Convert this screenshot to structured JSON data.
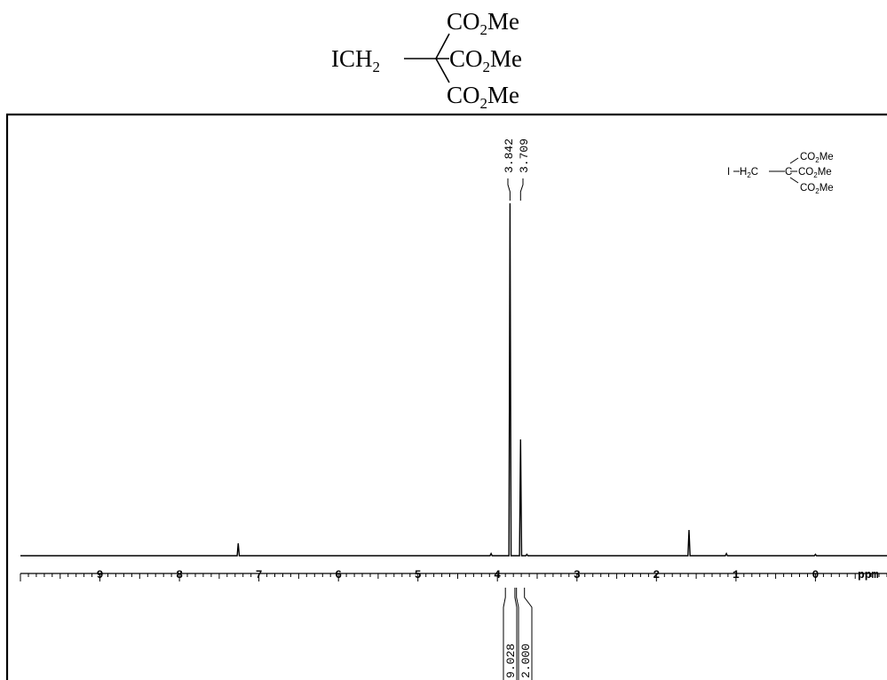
{
  "structure": {
    "substituent": "ICH",
    "substituent_sub": "2",
    "ester": "CO",
    "ester_sub": "2",
    "ester_tail": "Me"
  },
  "inset_structure": {
    "iodide": "I",
    "methylene": "H",
    "methylene_sub": "2",
    "methylene_tail": "C",
    "carbon": "C",
    "ester": "CO",
    "ester_sub": "2",
    "ester_tail": "Me"
  },
  "chart_data": {
    "type": "line",
    "xlabel": "ppm",
    "xlim": [
      10.0,
      -0.9
    ],
    "x_reversed": true,
    "tick_labels": [
      "9",
      "8",
      "7",
      "6",
      "5",
      "4",
      "3",
      "2",
      "1",
      "0"
    ],
    "tick_values": [
      9,
      8,
      7,
      6,
      5,
      4,
      3,
      2,
      1,
      0
    ],
    "minor_tick_step": 0.1,
    "peaks": [
      {
        "ppm": 7.26,
        "intensity": 0.035
      },
      {
        "ppm": 4.08,
        "intensity": 0.006
      },
      {
        "ppm": 3.842,
        "intensity": 1.0
      },
      {
        "ppm": 3.709,
        "intensity": 0.33
      },
      {
        "ppm": 3.63,
        "intensity": 0.004
      },
      {
        "ppm": 1.59,
        "intensity": 0.073
      },
      {
        "ppm": 1.12,
        "intensity": 0.006
      },
      {
        "ppm": 0.0,
        "intensity": 0.004
      }
    ],
    "peak_labels": [
      "3.842",
      "3.709"
    ],
    "peak_label_positions": [
      3.842,
      3.709
    ],
    "integrals": [
      {
        "from": 3.9,
        "to": 3.78,
        "value": "9.028"
      },
      {
        "from": 3.76,
        "to": 3.66,
        "value": "2.000"
      }
    ]
  }
}
